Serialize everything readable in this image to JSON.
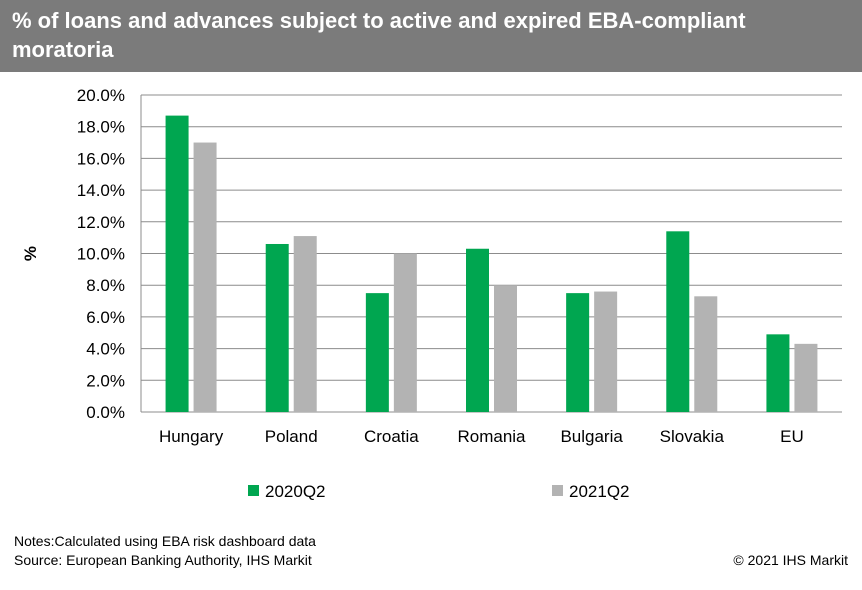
{
  "header": {
    "title": "% of loans and advances subject to active and expired EBA-compliant moratoria"
  },
  "chart_data": {
    "type": "bar",
    "title": "% of loans and advances subject to active and expired EBA-compliant moratoria",
    "xlabel": "",
    "ylabel": "%",
    "ylim": [
      0,
      20
    ],
    "ytick_step": 2,
    "yticks": [
      "0.0%",
      "2.0%",
      "4.0%",
      "6.0%",
      "8.0%",
      "10.0%",
      "12.0%",
      "14.0%",
      "16.0%",
      "18.0%",
      "20.0%"
    ],
    "categories": [
      "Hungary",
      "Poland",
      "Croatia",
      "Romania",
      "Bulgaria",
      "Slovakia",
      "EU"
    ],
    "series": [
      {
        "name": "2020Q2",
        "color": "#00a650",
        "values": [
          18.7,
          10.6,
          7.5,
          10.3,
          7.5,
          11.4,
          4.9
        ]
      },
      {
        "name": "2021Q2",
        "color": "#b3b3b3",
        "values": [
          17.0,
          11.1,
          10.0,
          8.0,
          7.6,
          7.3,
          4.3
        ]
      }
    ],
    "grid": true,
    "legend_position": "bottom"
  },
  "footer": {
    "notes": "Notes:Calculated using EBA risk dashboard data",
    "source": "Source: European Banking Authority, IHS Markit",
    "copyright": "© 2021 IHS Markit"
  }
}
